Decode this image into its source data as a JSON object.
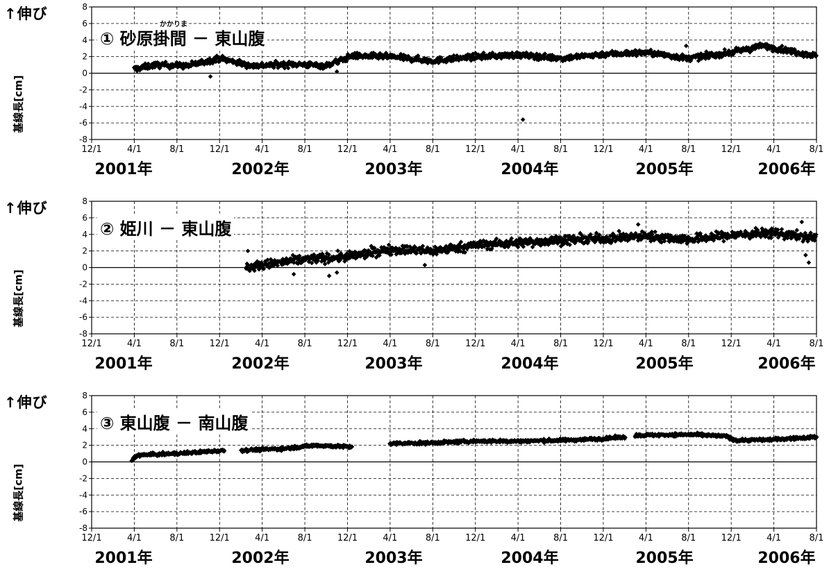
{
  "chart_data": [
    {
      "type": "scatter",
      "id": "panel1",
      "title": "① 砂原掛間 － 東山腹",
      "ruby": "かかりま",
      "y_note": "↑伸び",
      "ylabel": "基線長[cm]",
      "ylim": [
        -8,
        8
      ],
      "y_ticks": [
        "8",
        "6",
        "4",
        "2",
        "0",
        "-2",
        "-4",
        "-6",
        "-8"
      ],
      "x_ticks": [
        "12/1",
        "4/1",
        "8/1",
        "12/1",
        "4/1",
        "8/1",
        "12/1",
        "4/1",
        "8/1",
        "12/1",
        "4/1",
        "8/1",
        "12/1",
        "4/1",
        "8/1",
        "12/1",
        "4/1",
        "8/1"
      ],
      "x_years": [
        "2001年",
        "2002年",
        "2003年",
        "2004年",
        "2005年",
        "2006年"
      ],
      "xlim": [
        "2000-12-01",
        "2006-08-01"
      ],
      "marker": "diamond",
      "trend": [
        {
          "date": "2001-04-01",
          "y": 0.5
        },
        {
          "date": "2001-06-01",
          "y": 1.0
        },
        {
          "date": "2001-09-01",
          "y": 0.9
        },
        {
          "date": "2001-12-01",
          "y": 1.8
        },
        {
          "date": "2002-03-01",
          "y": 0.9
        },
        {
          "date": "2002-07-01",
          "y": 1.1
        },
        {
          "date": "2002-10-01",
          "y": 0.9
        },
        {
          "date": "2002-12-15",
          "y": 2.1
        },
        {
          "date": "2003-04-01",
          "y": 2.0
        },
        {
          "date": "2003-08-01",
          "y": 1.5
        },
        {
          "date": "2003-12-01",
          "y": 2.0
        },
        {
          "date": "2004-04-01",
          "y": 2.2
        },
        {
          "date": "2004-08-01",
          "y": 1.8
        },
        {
          "date": "2004-12-01",
          "y": 2.3
        },
        {
          "date": "2005-04-01",
          "y": 2.5
        },
        {
          "date": "2005-08-01",
          "y": 1.8
        },
        {
          "date": "2005-12-01",
          "y": 2.5
        },
        {
          "date": "2006-03-01",
          "y": 3.3
        },
        {
          "date": "2006-08-01",
          "y": 2.1
        }
      ],
      "noise": 0.35,
      "outliers": [
        {
          "date": "2004-04-15",
          "y": -5.6
        },
        {
          "date": "2005-07-25",
          "y": 3.3
        },
        {
          "date": "2001-11-05",
          "y": -0.4
        },
        {
          "date": "2002-11-01",
          "y": 0.2
        }
      ]
    },
    {
      "type": "scatter",
      "id": "panel2",
      "title": "② 姫川 － 東山腹",
      "y_note": "↑伸び",
      "ylabel": "基線長[cm]",
      "ylim": [
        -8,
        8
      ],
      "y_ticks": [
        "8",
        "6",
        "4",
        "2",
        "0",
        "-2",
        "-4",
        "-6",
        "-8"
      ],
      "x_ticks": [
        "12/1",
        "4/1",
        "8/1",
        "12/1",
        "4/1",
        "8/1",
        "12/1",
        "4/1",
        "8/1",
        "12/1",
        "4/1",
        "8/1",
        "12/1",
        "4/1",
        "8/1",
        "12/1",
        "4/1",
        "8/1"
      ],
      "x_years": [
        "2001年",
        "2002年",
        "2003年",
        "2004年",
        "2005年",
        "2006年"
      ],
      "xlim": [
        "2000-12-01",
        "2006-08-01"
      ],
      "marker": "diamond",
      "trend": [
        {
          "date": "2002-02-15",
          "y": 0.0
        },
        {
          "date": "2002-04-01",
          "y": 0.3
        },
        {
          "date": "2002-08-01",
          "y": 1.0
        },
        {
          "date": "2002-12-01",
          "y": 1.3
        },
        {
          "date": "2003-04-01",
          "y": 2.2
        },
        {
          "date": "2003-08-01",
          "y": 2.0
        },
        {
          "date": "2003-12-01",
          "y": 2.7
        },
        {
          "date": "2004-04-01",
          "y": 3.0
        },
        {
          "date": "2004-08-01",
          "y": 3.3
        },
        {
          "date": "2004-12-01",
          "y": 3.5
        },
        {
          "date": "2005-04-01",
          "y": 3.8
        },
        {
          "date": "2005-08-01",
          "y": 3.4
        },
        {
          "date": "2005-12-01",
          "y": 3.9
        },
        {
          "date": "2006-04-01",
          "y": 4.2
        },
        {
          "date": "2006-08-01",
          "y": 3.5
        }
      ],
      "noise": 0.55,
      "outliers": [
        {
          "date": "2002-02-20",
          "y": 2.0
        },
        {
          "date": "2002-07-01",
          "y": -0.8
        },
        {
          "date": "2002-10-10",
          "y": -1.0
        },
        {
          "date": "2002-11-01",
          "y": -0.6
        },
        {
          "date": "2003-07-10",
          "y": 0.3
        },
        {
          "date": "2005-03-10",
          "y": 5.2
        },
        {
          "date": "2006-06-20",
          "y": 5.5
        },
        {
          "date": "2006-07-01",
          "y": 1.5
        },
        {
          "date": "2006-07-10",
          "y": 0.6
        }
      ]
    },
    {
      "type": "scatter",
      "id": "panel3",
      "title": "③ 東山腹 － 南山腹",
      "y_note": "↑伸び",
      "ylabel": "基線長[cm]",
      "ylim": [
        -8,
        8
      ],
      "y_ticks": [
        "8",
        "6",
        "4",
        "2",
        "0",
        "-2",
        "-4",
        "-6",
        "-8"
      ],
      "x_ticks": [
        "12/1",
        "4/1",
        "8/1",
        "12/1",
        "4/1",
        "8/1",
        "12/1",
        "4/1",
        "8/1",
        "12/1",
        "4/1",
        "8/1",
        "12/1",
        "4/1",
        "8/1",
        "12/1",
        "4/1",
        "8/1"
      ],
      "x_years": [
        "2001年",
        "2002年",
        "2003年",
        "2004年",
        "2005年",
        "2006年"
      ],
      "xlim": [
        "2000-12-01",
        "2006-08-01"
      ],
      "marker": "diamond",
      "segments": [
        [
          {
            "date": "2001-03-25",
            "y": 0.2
          },
          {
            "date": "2001-04-10",
            "y": 0.8
          },
          {
            "date": "2001-08-01",
            "y": 1.0
          },
          {
            "date": "2001-12-15",
            "y": 1.4
          }
        ],
        [
          {
            "date": "2002-02-01",
            "y": 1.4
          },
          {
            "date": "2002-06-01",
            "y": 1.6
          },
          {
            "date": "2002-09-01",
            "y": 2.0
          },
          {
            "date": "2002-12-15",
            "y": 1.8
          }
        ],
        [
          {
            "date": "2003-04-01",
            "y": 2.2
          },
          {
            "date": "2003-08-01",
            "y": 2.3
          },
          {
            "date": "2003-12-01",
            "y": 2.5
          },
          {
            "date": "2004-04-01",
            "y": 2.5
          },
          {
            "date": "2004-08-01",
            "y": 2.6
          },
          {
            "date": "2004-12-01",
            "y": 2.8
          },
          {
            "date": "2005-02-01",
            "y": 3.0
          }
        ],
        [
          {
            "date": "2005-03-01",
            "y": 3.2
          },
          {
            "date": "2005-08-01",
            "y": 3.3
          },
          {
            "date": "2005-11-15",
            "y": 3.1
          },
          {
            "date": "2005-12-15",
            "y": 2.6
          },
          {
            "date": "2006-04-01",
            "y": 2.7
          },
          {
            "date": "2006-08-01",
            "y": 3.0
          }
        ]
      ],
      "noise": 0.18,
      "outliers": []
    }
  ]
}
